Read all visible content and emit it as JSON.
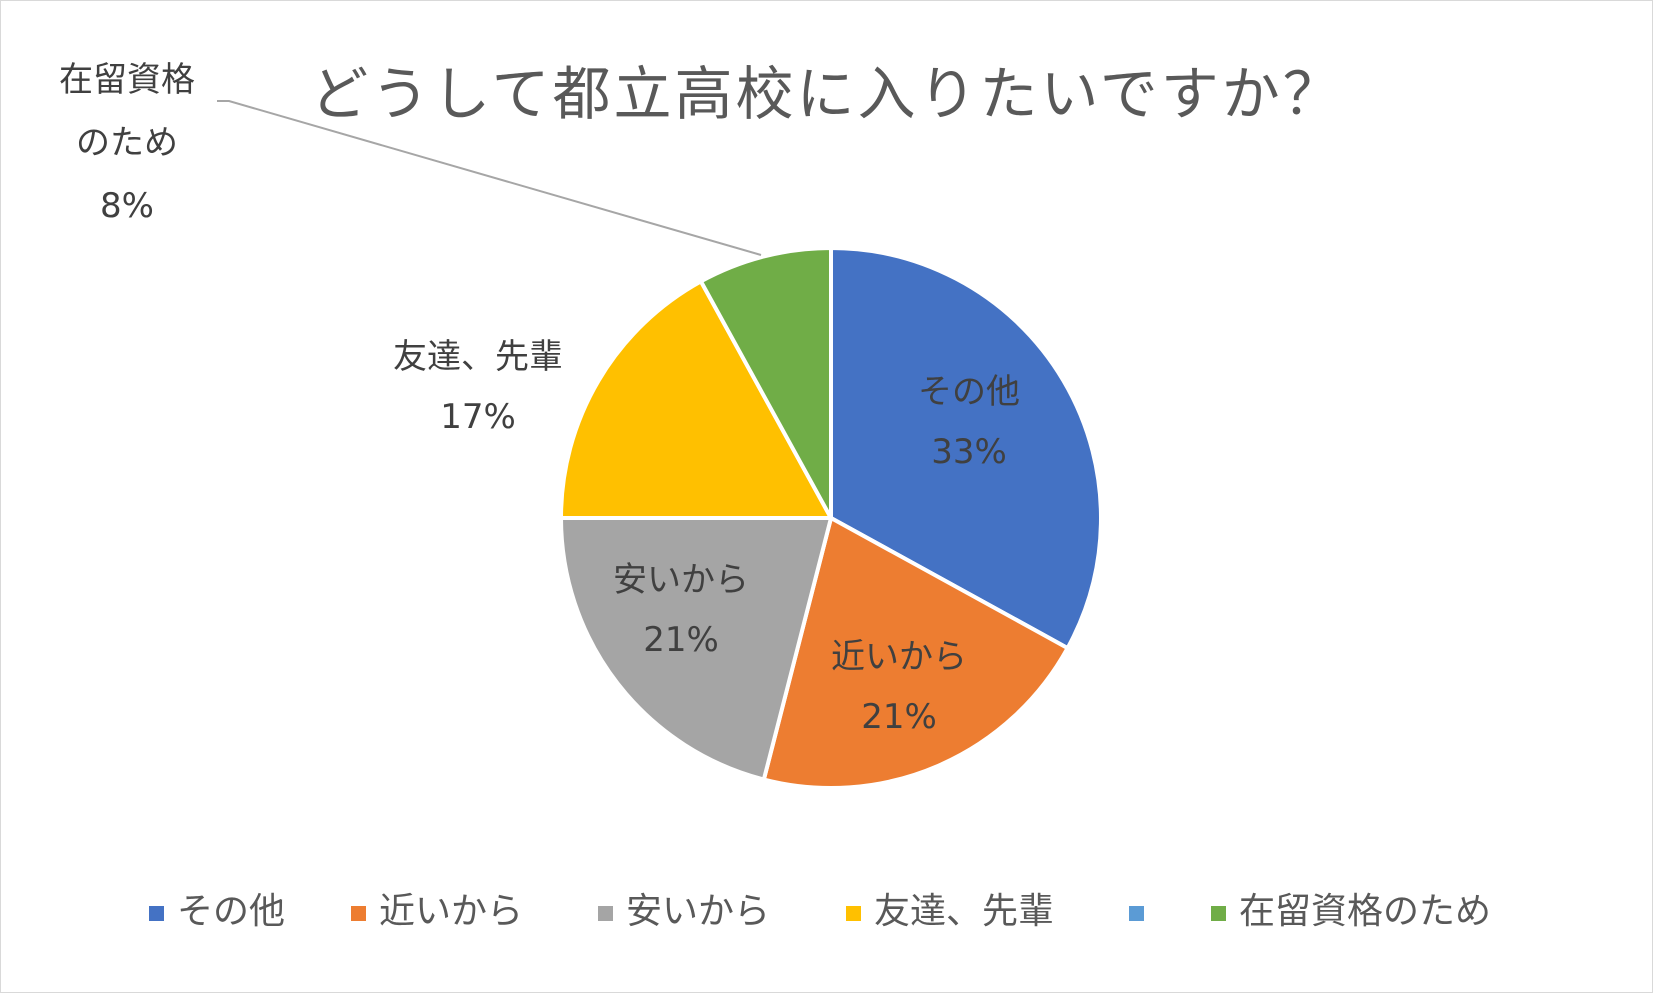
{
  "chart_data": {
    "type": "pie",
    "title": "どうして都立高校に入りたいですか？",
    "categories": [
      "その他",
      "近いから",
      "安いから",
      "友達、先輩",
      "",
      "在留資格のため"
    ],
    "values": [
      33,
      21,
      21,
      17,
      0,
      8
    ],
    "colors": [
      "#4472c4",
      "#ed7d31",
      "#a5a5a5",
      "#ffc000",
      "#5b9bd5",
      "#70ad47"
    ],
    "data_labels": [
      {
        "lines": [
          "その他",
          "33%"
        ],
        "placement": "inside"
      },
      {
        "lines": [
          "近いから",
          "21%"
        ],
        "placement": "inside"
      },
      {
        "lines": [
          "安いから",
          "21%"
        ],
        "placement": "inside"
      },
      {
        "lines": [
          "友達、先輩",
          "17%"
        ],
        "placement": "outside"
      },
      null,
      {
        "lines": [
          "在留資格",
          "のため",
          "8%"
        ],
        "placement": "outside-with-leader-line"
      }
    ],
    "legend": {
      "position": "bottom",
      "entries": [
        "その他",
        "近いから",
        "安いから",
        "友達、先輩",
        "",
        "在留資格のため"
      ]
    }
  }
}
